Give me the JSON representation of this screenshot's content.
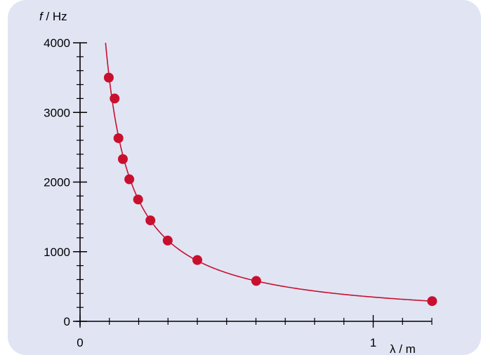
{
  "chart_data": {
    "type": "scatter",
    "x_axis": {
      "label_symbol": "λ",
      "label_unit": " / m",
      "range": [
        0,
        1.2
      ],
      "major_ticks": [
        0,
        1
      ],
      "tick_labels": [
        "0",
        "1"
      ],
      "minor_step": 0.1
    },
    "y_axis": {
      "label_symbol": "f",
      "label_unit": " / Hz",
      "range": [
        0,
        4000
      ],
      "major_ticks": [
        0,
        1000,
        2000,
        3000,
        4000
      ],
      "tick_labels": [
        "0",
        "1000",
        "2000",
        "3000",
        "4000"
      ],
      "minor_step": 200
    },
    "series": [
      {
        "points": [
          {
            "x": 0.098,
            "y": 3500
          },
          {
            "x": 0.118,
            "y": 3200
          },
          {
            "x": 0.131,
            "y": 2630
          },
          {
            "x": 0.146,
            "y": 2330
          },
          {
            "x": 0.168,
            "y": 2040
          },
          {
            "x": 0.198,
            "y": 1750
          },
          {
            "x": 0.24,
            "y": 1450
          },
          {
            "x": 0.299,
            "y": 1160
          },
          {
            "x": 0.4,
            "y": 880
          },
          {
            "x": 0.601,
            "y": 580
          },
          {
            "x": 1.201,
            "y": 290
          }
        ],
        "fit": {
          "type": "hyperbola",
          "constant": 348,
          "x_start": 0.087,
          "x_end": 1.2
        }
      }
    ],
    "colors": {
      "points": "#c8102e",
      "curve": "#c8102e",
      "axes": "#000000",
      "background": "#e1e4f3"
    }
  }
}
